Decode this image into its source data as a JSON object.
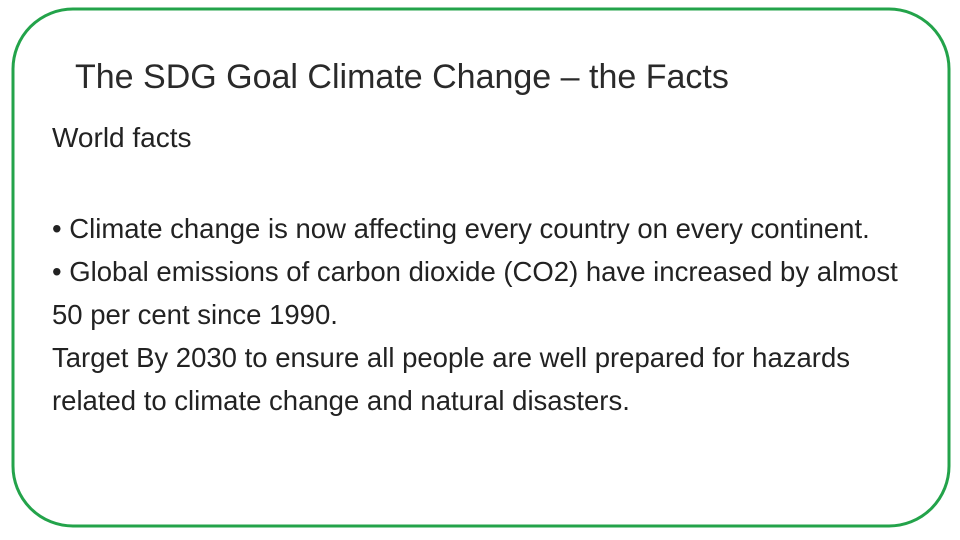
{
  "slide": {
    "title": "The SDG Goal Climate Change – the Facts",
    "subtitle": "World facts",
    "paragraphs": [
      "• Climate change is now affecting every country on every continent.",
      "• Global emissions of carbon dioxide (CO2) have increased by almost 50 per cent since 1990.",
      "Target By 2030 to ensure all people are well prepared for hazards related to climate change and natural disasters."
    ]
  }
}
